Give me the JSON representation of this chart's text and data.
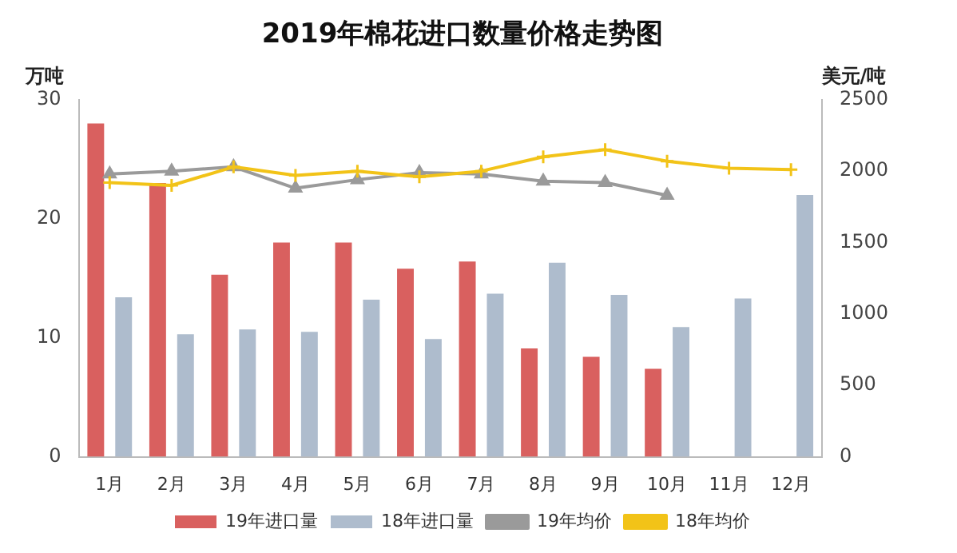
{
  "chart_data": {
    "type": "bar",
    "title": "2019年棉花进口数量价格走势图",
    "ylabel": "万吨",
    "y2label": "美元/吨",
    "categories": [
      "1月",
      "2月",
      "3月",
      "4月",
      "5月",
      "6月",
      "7月",
      "8月",
      "9月",
      "10月",
      "11月",
      "12月"
    ],
    "series": [
      {
        "name": "19年进口量",
        "color": "#d9605f",
        "values": [
          28.0,
          23.0,
          15.3,
          18.0,
          18.0,
          15.8,
          16.4,
          9.1,
          8.4,
          7.4,
          null,
          null
        ]
      },
      {
        "name": "18年进口量",
        "color": "#aebccd",
        "values": [
          13.4,
          10.3,
          10.7,
          10.5,
          13.2,
          9.9,
          13.7,
          16.3,
          13.6,
          10.9,
          13.3,
          22.0
        ]
      },
      {
        "name": "19年均价",
        "type": "line",
        "axis": "y2",
        "color": "#9a9a9a",
        "marker": "triangle",
        "values": [
          1980,
          2000,
          2030,
          1880,
          1940,
          1990,
          1980,
          1930,
          1920,
          1830,
          null,
          null
        ]
      },
      {
        "name": "18年均价",
        "type": "line",
        "axis": "y2",
        "color": "#f2c318",
        "marker": "cross",
        "values": [
          1920,
          1900,
          2030,
          1970,
          2000,
          1960,
          2000,
          2100,
          2150,
          2070,
          2020,
          2010
        ]
      }
    ],
    "ylim": [
      0,
      30
    ],
    "yticks": [
      0,
      10,
      20,
      30
    ],
    "y2lim": [
      0,
      2500
    ],
    "y2ticks": [
      0,
      500,
      1000,
      1500,
      2000,
      2500
    ],
    "grid": false,
    "legend": "bottom"
  }
}
